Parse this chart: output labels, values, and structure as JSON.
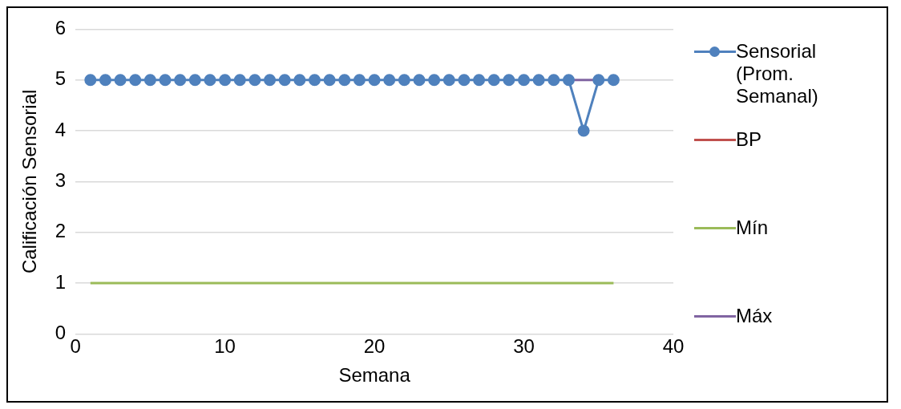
{
  "chart_data": {
    "type": "line",
    "xlabel": "Semana",
    "ylabel": "Calificación Sensorial",
    "x": [
      1,
      2,
      3,
      4,
      5,
      6,
      7,
      8,
      9,
      10,
      11,
      12,
      13,
      14,
      15,
      16,
      17,
      18,
      19,
      20,
      21,
      22,
      23,
      24,
      25,
      26,
      27,
      28,
      29,
      30,
      31,
      32,
      33,
      34,
      35,
      36
    ],
    "series": [
      {
        "name": "Sensorial (Prom. Semanal)",
        "color": "#4f81bd",
        "marker": "circle",
        "values": [
          5,
          5,
          5,
          5,
          5,
          5,
          5,
          5,
          5,
          5,
          5,
          5,
          5,
          5,
          5,
          5,
          5,
          5,
          5,
          5,
          5,
          5,
          5,
          5,
          5,
          5,
          5,
          5,
          5,
          5,
          5,
          5,
          5,
          4,
          5,
          5
        ]
      },
      {
        "name": "BP",
        "color": "#c0504d",
        "marker": "none",
        "values": [
          null,
          null,
          null,
          null,
          null,
          null,
          null,
          null,
          null,
          null,
          null,
          null,
          null,
          null,
          null,
          null,
          null,
          null,
          null,
          null,
          null,
          null,
          null,
          null,
          null,
          null,
          null,
          null,
          null,
          null,
          null,
          null,
          null,
          null,
          null,
          null
        ]
      },
      {
        "name": "Mín",
        "color": "#9bbb59",
        "marker": "none",
        "values": [
          1,
          1,
          1,
          1,
          1,
          1,
          1,
          1,
          1,
          1,
          1,
          1,
          1,
          1,
          1,
          1,
          1,
          1,
          1,
          1,
          1,
          1,
          1,
          1,
          1,
          1,
          1,
          1,
          1,
          1,
          1,
          1,
          1,
          1,
          1,
          1
        ]
      },
      {
        "name": "Máx",
        "color": "#8064a2",
        "marker": "none",
        "values": [
          null,
          null,
          null,
          null,
          null,
          null,
          null,
          null,
          null,
          null,
          null,
          null,
          null,
          null,
          null,
          null,
          null,
          null,
          null,
          null,
          null,
          null,
          null,
          null,
          null,
          null,
          null,
          null,
          null,
          null,
          null,
          null,
          5,
          5,
          5,
          null
        ]
      }
    ],
    "xlim": [
      0,
      40
    ],
    "xticks": [
      0,
      10,
      20,
      30,
      40
    ],
    "ylim": [
      0,
      6
    ],
    "yticks": [
      0,
      1,
      2,
      3,
      4,
      5,
      6
    ],
    "grid": "y",
    "legend": "right",
    "line_style": "solid"
  }
}
